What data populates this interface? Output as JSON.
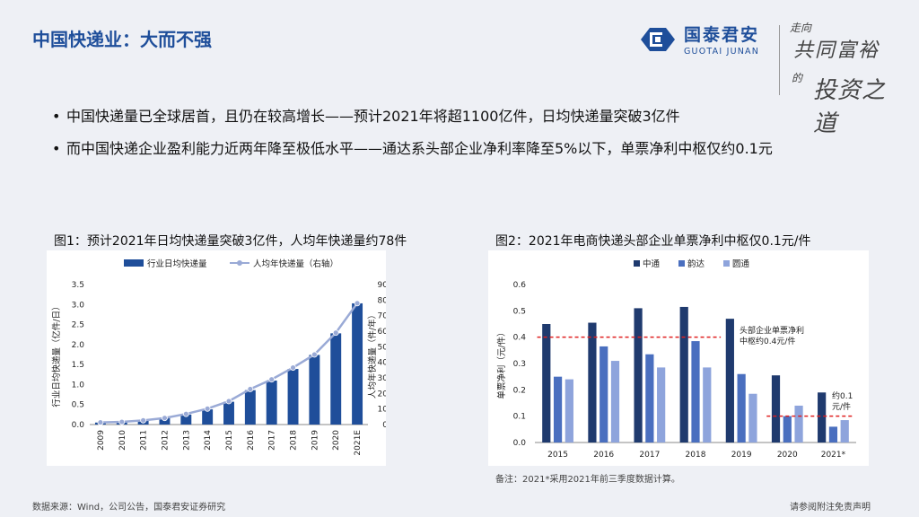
{
  "header": {
    "title": "中国快递业：大而不强",
    "logo_cn": "国泰君安",
    "logo_en": "GUOTAI JUNAN",
    "slogan": [
      "走向",
      "共同富裕",
      "的",
      "投资之道"
    ]
  },
  "bullets": [
    "中国快递量已全球居首，且仍在较高增长——预计2021年将超1100亿件，日均快递量突破3亿件",
    "而中国快递企业盈利能力近两年降至极低水平——通达系头部企业净利率降至5%以下，单票净利中枢仅约0.1元"
  ],
  "figures": {
    "fig1_title": "图1：预计2021年日均快递量突破3亿件，人均年快递量约78件",
    "fig2_title": "图2：2021年电商快递头部企业单票净利中枢仅0.1元/件"
  },
  "chart_data": [
    {
      "type": "bar",
      "categories": [
        "2009",
        "2010",
        "2011",
        "2012",
        "2013",
        "2014",
        "2015",
        "2016",
        "2017",
        "2018",
        "2019",
        "2020",
        "2021E"
      ],
      "series": [
        {
          "name": "行业日均快递量",
          "type": "bar",
          "axis": "left",
          "color": "#1f4e9a",
          "values": [
            0.05,
            0.06,
            0.1,
            0.16,
            0.25,
            0.38,
            0.57,
            0.86,
            1.1,
            1.39,
            1.74,
            2.28,
            3.03
          ]
        },
        {
          "name": "人均年快递量（右轴）",
          "type": "line",
          "axis": "right",
          "color": "#9aaad6",
          "values": [
            1.4,
            1.7,
            2.7,
            4.2,
            6.8,
            10.2,
            15.0,
            22.8,
            29.0,
            36.6,
            45.0,
            59.0,
            78.0
          ]
        }
      ],
      "ylabel": "行业日均快递量（亿件/日）",
      "y2label": "人均年快递量（件/年）",
      "ylim": [
        0,
        3.5
      ],
      "y2lim": [
        0,
        90
      ],
      "yticks": [
        "0.0",
        "0.5",
        "1.0",
        "1.5",
        "2.0",
        "2.5",
        "3.0",
        "3.5"
      ],
      "y2ticks": [
        "0",
        "10",
        "20",
        "30",
        "40",
        "50",
        "60",
        "70",
        "80",
        "90"
      ],
      "legend_position": "top"
    },
    {
      "type": "bar",
      "categories": [
        "2015",
        "2016",
        "2017",
        "2018",
        "2019",
        "2020",
        "2021*"
      ],
      "series": [
        {
          "name": "中通",
          "color": "#1f3a6e",
          "values": [
            0.45,
            0.455,
            0.51,
            0.515,
            0.47,
            0.255,
            0.19
          ]
        },
        {
          "name": "韵达",
          "color": "#4a6fbf",
          "values": [
            0.25,
            0.365,
            0.335,
            0.385,
            0.26,
            0.1,
            0.06
          ]
        },
        {
          "name": "圆通",
          "color": "#8ea4dc",
          "values": [
            0.24,
            0.31,
            0.285,
            0.285,
            0.185,
            0.14,
            0.085
          ]
        }
      ],
      "ylabel": "单票净利（元/件）",
      "ylim": [
        0,
        0.6
      ],
      "yticks": [
        "0.0",
        "0.1",
        "0.2",
        "0.3",
        "0.4",
        "0.5",
        "0.6"
      ],
      "reference_lines": [
        {
          "value": 0.4,
          "span": "2015-2019",
          "color": "#e02020"
        },
        {
          "value": 0.1,
          "span": "2020-2021*",
          "color": "#e02020"
        }
      ],
      "annotations": [
        "头部企业单票净利",
        "中枢约0.4元/件",
        "约0.1",
        "元/件"
      ],
      "legend_position": "top"
    }
  ],
  "notes": {
    "fig2_note": "备注：2021*采用2021年前三季度数据计算。",
    "source": "数据来源：Wind，公司公告，国泰君安证券研究",
    "disclaimer": "请参阅附注免责声明"
  }
}
